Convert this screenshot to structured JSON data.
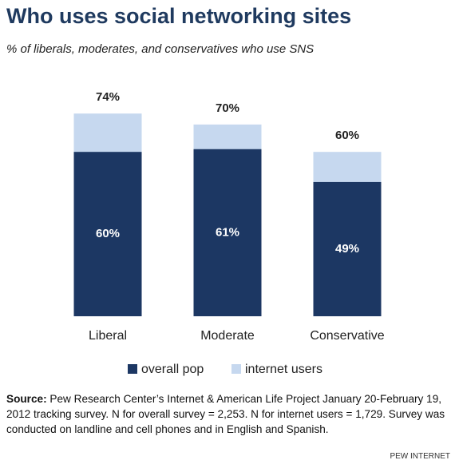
{
  "chart_data": {
    "type": "bar",
    "overlap": true,
    "title": "Who uses social networking sites",
    "subtitle": "% of liberals, moderates, and conservatives who use SNS",
    "categories": [
      "Liberal",
      "Moderate",
      "Conservative"
    ],
    "series": [
      {
        "name": "overall pop",
        "color": "#1c3763",
        "values": [
          60,
          61,
          49
        ],
        "value_labels": [
          "60%",
          "61%",
          "49%"
        ]
      },
      {
        "name": "internet users",
        "color": "#c6d8ef",
        "values": [
          74,
          70,
          60
        ],
        "value_labels": [
          "74%",
          "70%",
          "60%"
        ]
      }
    ],
    "ylim": [
      0,
      100
    ],
    "legend": "bottom",
    "source_label": "Source:",
    "source": "Pew Research Center’s Internet & American Life Project January 20-February 19, 2012 tracking survey. N for overall survey = 2,253. N for internet users = 1,729. Survey was conducted on landline and cell phones and in English and Spanish.",
    "credit": "PEW INTERNET"
  }
}
